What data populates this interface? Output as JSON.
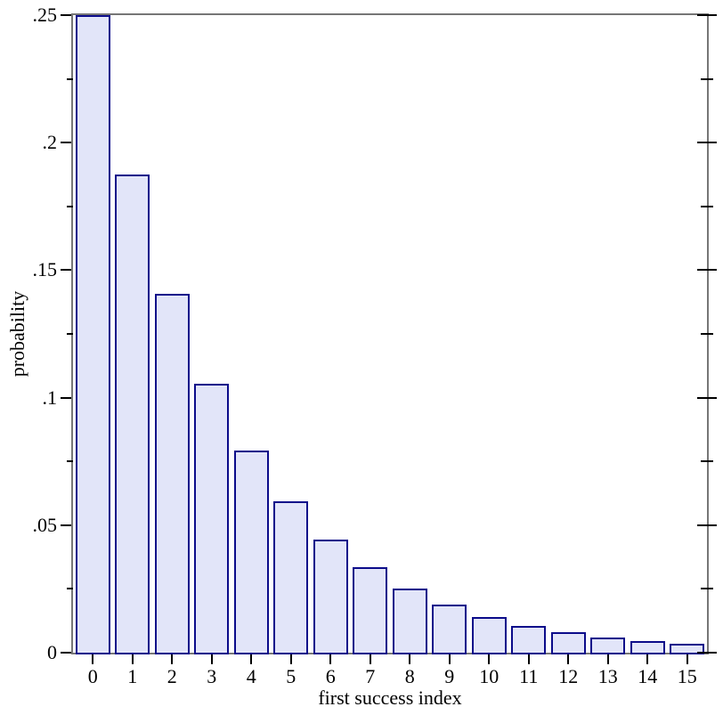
{
  "chart_data": {
    "type": "bar",
    "xlabel": "first success index",
    "ylabel": "probability",
    "categories": [
      "0",
      "1",
      "2",
      "3",
      "4",
      "5",
      "6",
      "7",
      "8",
      "9",
      "10",
      "11",
      "12",
      "13",
      "14",
      "15"
    ],
    "values": [
      0.25,
      0.1875,
      0.140625,
      0.105469,
      0.079102,
      0.059326,
      0.044495,
      0.033371,
      0.025028,
      0.018771,
      0.014078,
      0.010559,
      0.007919,
      0.005939,
      0.004455,
      0.003341
    ],
    "ylim": [
      0,
      0.25
    ],
    "y_major_ticks": [
      {
        "value": 0,
        "label": "0"
      },
      {
        "value": 0.05,
        "label": ".05"
      },
      {
        "value": 0.1,
        "label": ".1"
      },
      {
        "value": 0.15,
        "label": ".15"
      },
      {
        "value": 0.2,
        "label": ".2"
      },
      {
        "value": 0.25,
        "label": ".25"
      }
    ],
    "y_minor_ticks": [
      0.025,
      0.075,
      0.125,
      0.175,
      0.225
    ],
    "grid": false,
    "legend": "none"
  },
  "style": {
    "background": "#ffffff",
    "frame_color": "#767676",
    "tick_color": "#000000",
    "text_color": "#000000",
    "bar_fill": "#e2e5f9",
    "bar_border": "#0b0b8a"
  }
}
